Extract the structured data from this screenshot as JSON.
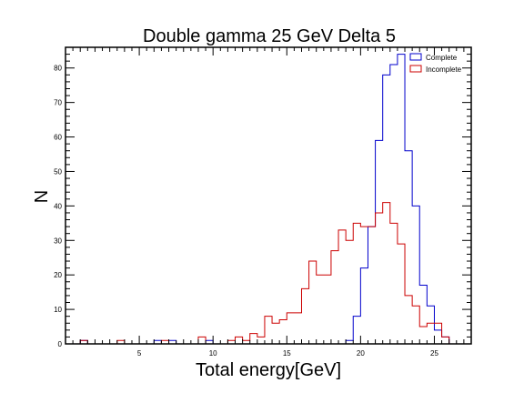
{
  "chart_data": {
    "type": "histogram",
    "title": "Double gamma 25 GeV Delta 5",
    "xlabel": "Total energy[GeV]",
    "ylabel": "N",
    "xlim": [
      0,
      27.5
    ],
    "ylim": [
      0,
      86
    ],
    "x_ticks": [
      "5",
      "10",
      "15",
      "20",
      "25"
    ],
    "y_ticks": [
      "0",
      "10",
      "20",
      "30",
      "40",
      "50",
      "60",
      "70",
      "80"
    ],
    "bin_width": 0.5,
    "legend_position": "top-right",
    "series": [
      {
        "name": "Complete",
        "color": "#0000cc",
        "bins": [
          [
            1.25,
            1
          ],
          [
            6.25,
            1
          ],
          [
            7.25,
            1
          ],
          [
            9.75,
            1
          ],
          [
            19.25,
            1
          ],
          [
            19.75,
            8
          ],
          [
            20.25,
            22
          ],
          [
            20.75,
            34
          ],
          [
            21.25,
            59
          ],
          [
            21.75,
            78
          ],
          [
            22.25,
            81
          ],
          [
            22.75,
            84
          ],
          [
            23.25,
            56
          ],
          [
            23.75,
            40
          ],
          [
            24.25,
            17
          ],
          [
            24.75,
            11
          ],
          [
            25.25,
            4
          ],
          [
            25.75,
            2
          ]
        ]
      },
      {
        "name": "Incomplete",
        "color": "#cc0000",
        "bins": [
          [
            1.25,
            1
          ],
          [
            3.75,
            1
          ],
          [
            6.75,
            1
          ],
          [
            9.25,
            2
          ],
          [
            11.25,
            1
          ],
          [
            11.75,
            2
          ],
          [
            12.25,
            1
          ],
          [
            12.75,
            3
          ],
          [
            13.25,
            2
          ],
          [
            13.75,
            8
          ],
          [
            14.25,
            6
          ],
          [
            14.75,
            7
          ],
          [
            15.25,
            9
          ],
          [
            15.75,
            9
          ],
          [
            16.25,
            16
          ],
          [
            16.75,
            24
          ],
          [
            17.25,
            20
          ],
          [
            17.75,
            20
          ],
          [
            18.25,
            27
          ],
          [
            18.75,
            33
          ],
          [
            19.25,
            30
          ],
          [
            19.75,
            35
          ],
          [
            20.25,
            34
          ],
          [
            20.75,
            34
          ],
          [
            21.25,
            38
          ],
          [
            21.75,
            41
          ],
          [
            22.25,
            35
          ],
          [
            22.75,
            29
          ],
          [
            23.25,
            14
          ],
          [
            23.75,
            11
          ],
          [
            24.25,
            5
          ],
          [
            24.75,
            6
          ],
          [
            25.25,
            6
          ],
          [
            25.75,
            2
          ]
        ]
      }
    ]
  }
}
